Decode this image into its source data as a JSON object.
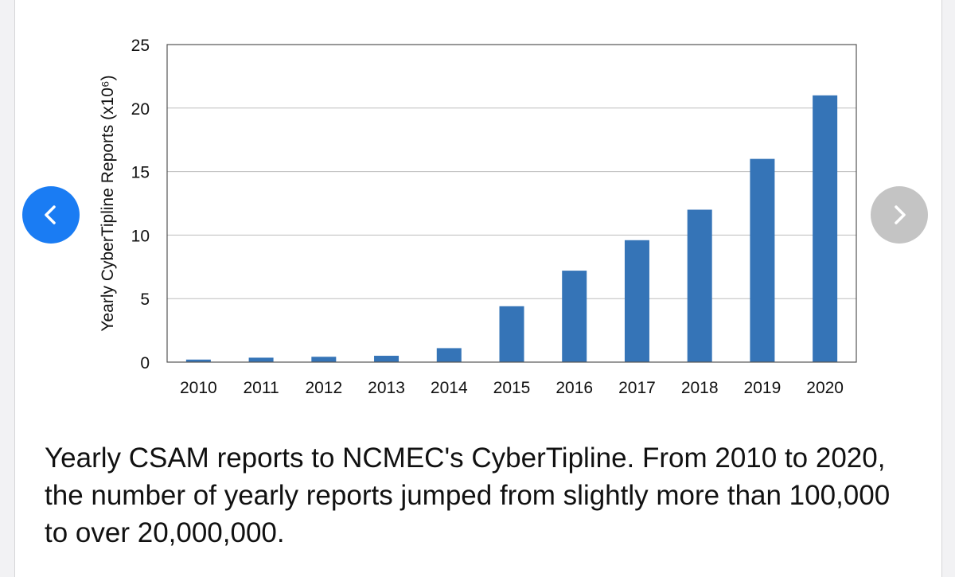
{
  "chart_data": {
    "type": "bar",
    "title": "",
    "xlabel": "",
    "ylabel": "Yearly CyberTipline Reports (x10⁶)",
    "categories": [
      "2010",
      "2011",
      "2012",
      "2013",
      "2014",
      "2015",
      "2016",
      "2017",
      "2018",
      "2019",
      "2020"
    ],
    "values": [
      0.2,
      0.35,
      0.42,
      0.5,
      1.1,
      4.4,
      7.2,
      9.6,
      12.0,
      16.0,
      21.0
    ],
    "ylim": [
      0,
      25
    ],
    "yticks": [
      0,
      5,
      10,
      15,
      20,
      25
    ],
    "grid": true,
    "legend": "none",
    "bar_color": "#3574b7"
  },
  "carousel": {
    "prev_color": "#1a7cf3",
    "next_color": "#c4c4c4"
  },
  "caption": "Yearly CSAM reports to NCMEC's CyberTipline. From 2010 to 2020, the number of yearly reports jumped from slightly more than 100,000 to over 20,000,000."
}
